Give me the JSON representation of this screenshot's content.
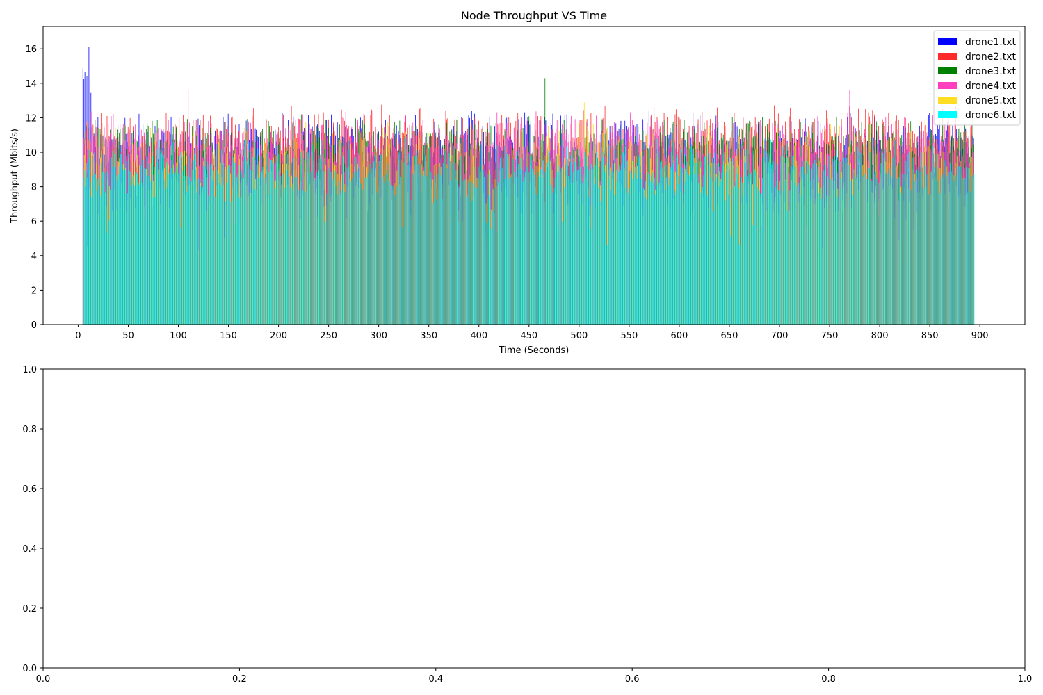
{
  "chart_data": [
    {
      "type": "bar",
      "stacking": "overlaid",
      "title": "Node Throughput VS Time",
      "xlabel": "Time (Seconds)",
      "ylabel": "Throughput (Mbits/s)",
      "xlim": [
        -35,
        945
      ],
      "ylim": [
        0,
        17.3
      ],
      "x_ticks": [
        0,
        50,
        100,
        150,
        200,
        250,
        300,
        350,
        400,
        450,
        500,
        550,
        600,
        650,
        700,
        750,
        800,
        850,
        900
      ],
      "y_ticks": [
        0,
        2,
        4,
        6,
        8,
        10,
        12,
        14,
        16
      ],
      "x_range_data": [
        5,
        894
      ],
      "bar_step_seconds": 1,
      "grid": false,
      "legend_position": "top-right",
      "series": [
        {
          "name": "drone1.txt",
          "color": "#0000ff",
          "typical_range": [
            8.5,
            12.5
          ],
          "peak": 16.5,
          "peak_x": 8
        },
        {
          "name": "drone2.txt",
          "color": "#ff2b2b",
          "typical_range": [
            8.5,
            12.8
          ],
          "peak": 13.6,
          "peak_x": 110
        },
        {
          "name": "drone3.txt",
          "color": "#008000",
          "typical_range": [
            8.0,
            12.3
          ],
          "peak": 14.3,
          "peak_x": 466
        },
        {
          "name": "drone4.txt",
          "color": "#ff3fbf",
          "typical_range": [
            8.0,
            12.5
          ],
          "peak": 13.6,
          "peak_x": 770
        },
        {
          "name": "drone5.txt",
          "color": "#ffdd22",
          "typical_range": [
            6.0,
            12.0
          ],
          "peak": 12.9,
          "peak_x": 505
        },
        {
          "name": "drone6.txt",
          "color": "#00ffff",
          "typical_range": [
            7.0,
            11.0
          ],
          "peak": 14.2,
          "peak_x": 185
        }
      ]
    },
    {
      "type": "empty",
      "xlim": [
        0,
        1
      ],
      "ylim": [
        0,
        1
      ],
      "x_ticks": [
        "0.0",
        "0.2",
        "0.4",
        "0.6",
        "0.8",
        "1.0"
      ],
      "y_ticks": [
        "0.0",
        "0.2",
        "0.4",
        "0.6",
        "0.8",
        "1.0"
      ]
    }
  ]
}
